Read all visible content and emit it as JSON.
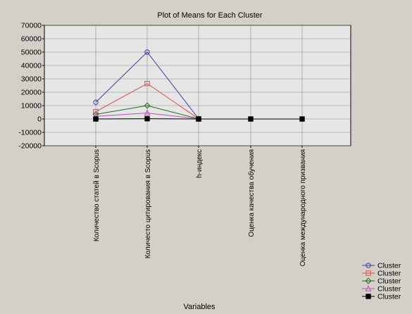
{
  "chart_data": {
    "type": "line",
    "title": "Plot of Means for Each Cluster",
    "xlabel": "Variables",
    "ylabel": "",
    "categories": [
      "Количество статей в  Scopus",
      "Количесто цитирования в  Scopus",
      "h-индекс",
      "Оценка качества обучения",
      "Оценка международного призвания"
    ],
    "ylim": [
      -20000,
      70000
    ],
    "yticks": [
      70000,
      60000,
      50000,
      40000,
      30000,
      20000,
      10000,
      0,
      -10000,
      -20000
    ],
    "grid": true,
    "legend_position": "bottom-right",
    "series": [
      {
        "name": "Cluster",
        "values": [
          12500,
          50000,
          200,
          null,
          null
        ],
        "color": "#3b3fa0",
        "marker": "circle-open"
      },
      {
        "name": "Cluster",
        "values": [
          5500,
          26500,
          150,
          null,
          null
        ],
        "color": "#e8474a",
        "marker": "square-open"
      },
      {
        "name": "Cluster",
        "values": [
          3500,
          10000,
          100,
          null,
          null
        ],
        "color": "#1f6b1f",
        "marker": "diamond-open"
      },
      {
        "name": "Cluster",
        "values": [
          2000,
          4500,
          50,
          null,
          null
        ],
        "color": "#c050c0",
        "marker": "triangle-open"
      },
      {
        "name": "Cluster",
        "values": [
          0,
          200,
          0,
          0,
          0
        ],
        "color": "#000000",
        "marker": "square-filled"
      }
    ]
  }
}
